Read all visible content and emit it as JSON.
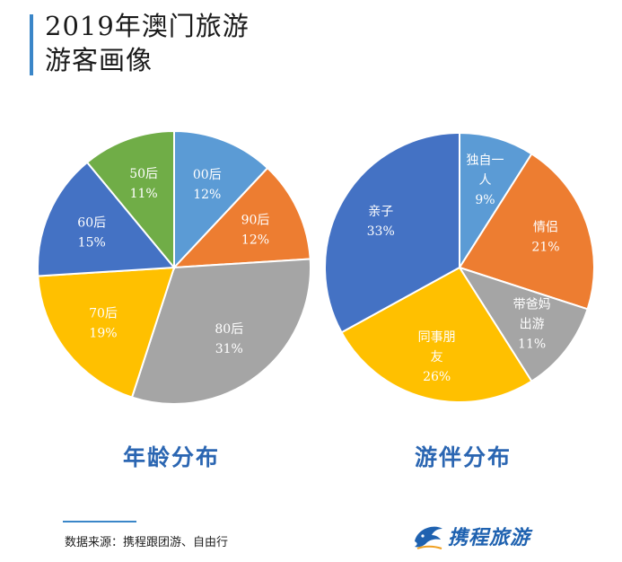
{
  "header": {
    "title_line1": "2019年澳门旅游",
    "title_line2": "游客画像"
  },
  "chart_data": [
    {
      "type": "pie",
      "title": "年龄分布",
      "slices": [
        {
          "label": "00后",
          "value": 12,
          "pct": "12%",
          "color": "#5b9bd5"
        },
        {
          "label": "90后",
          "value": 12,
          "pct": "12%",
          "color": "#ed7d31"
        },
        {
          "label": "80后",
          "value": 31,
          "pct": "31%",
          "color": "#a5a5a5"
        },
        {
          "label": "70后",
          "value": 19,
          "pct": "19%",
          "color": "#ffc000"
        },
        {
          "label": "60后",
          "value": 15,
          "pct": "15%",
          "color": "#4472c4"
        },
        {
          "label": "50后",
          "value": 11,
          "pct": "11%",
          "color": "#70ad47"
        }
      ]
    },
    {
      "type": "pie",
      "title": "游伴分布",
      "slices": [
        {
          "label": "独自一人",
          "lines": [
            "独自一",
            "人"
          ],
          "value": 9,
          "pct": "9%",
          "color": "#5b9bd5"
        },
        {
          "label": "情侣",
          "lines": [
            "情侣"
          ],
          "value": 21,
          "pct": "21%",
          "color": "#ed7d31"
        },
        {
          "label": "带爸妈出游",
          "lines": [
            "带爸妈",
            "出游"
          ],
          "value": 11,
          "pct": "11%",
          "color": "#a5a5a5"
        },
        {
          "label": "同事朋友",
          "lines": [
            "同事朋",
            "友"
          ],
          "value": 26,
          "pct": "26%",
          "color": "#ffc000"
        },
        {
          "label": "亲子",
          "lines": [
            "亲子"
          ],
          "value": 33,
          "pct": "33%",
          "color": "#4472c4"
        }
      ]
    }
  ],
  "footer": {
    "source": "数据来源：携程跟团游、自由行",
    "logo_text": "携程旅游"
  }
}
